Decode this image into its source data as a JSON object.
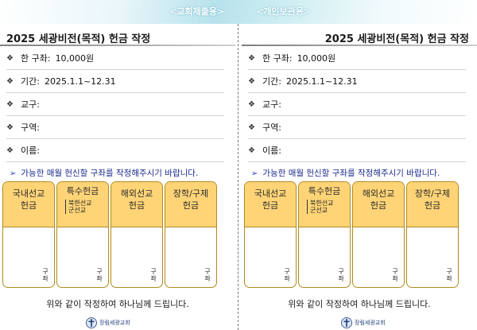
{
  "header": {
    "left_label": "<교회제출용>",
    "right_label": "<개인보관용>"
  },
  "colors": {
    "card_header": "#fed477",
    "card_border": "#b28a1c",
    "notice_text": "#1a2a8c",
    "banner": "#b7e2ec"
  },
  "form": {
    "title": "2025 세광비전(목적) 헌금 작정",
    "fields": [
      {
        "label": "한 구좌:",
        "value": "10,000원"
      },
      {
        "label": "기간:",
        "value": "2025.1.1~12.31"
      },
      {
        "label": "교구:",
        "value": ""
      },
      {
        "label": "구역:",
        "value": ""
      },
      {
        "label": "이름:",
        "value": ""
      }
    ],
    "bullet": "❖",
    "notice_arrow": "➢",
    "notice": "가능한 매월 헌신할 구좌를 작정해주시기 바랍니다.",
    "cards": [
      {
        "title": "국내선교\n헌금",
        "sub": "",
        "unit": "구좌"
      },
      {
        "title": "특수헌금",
        "sub": "북한선교\n군선교",
        "unit": "구좌"
      },
      {
        "title": "해외선교\n헌금",
        "sub": "",
        "unit": "구좌"
      },
      {
        "title": "장학/구제\n헌금",
        "sub": "",
        "unit": "구좌"
      }
    ],
    "closing": "위와 같이 작정하여 하나님께 드립니다.",
    "logo_text": "장림세광교회",
    "logo_icon": "church-cross-icon"
  }
}
